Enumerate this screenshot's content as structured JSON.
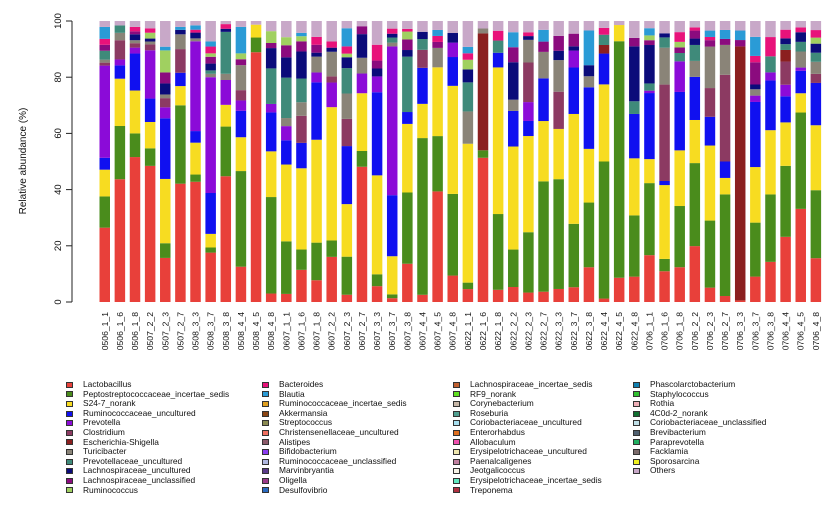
{
  "chart_data": {
    "type": "bar",
    "stacked": true,
    "title": "",
    "xlabel": "",
    "ylabel": "Relative abundance (%)",
    "ylim": [
      0,
      100
    ],
    "yticks": [
      0,
      20,
      40,
      60,
      80,
      100
    ],
    "grid": false,
    "legend_position": "bottom",
    "categories": [
      "0506_1_1",
      "0506_1_6",
      "0506_1_8",
      "0507_2_2",
      "0507_2_3",
      "0507_2_7",
      "0508_3_3",
      "0508_3_7",
      "0508_3_8",
      "0508_4_4",
      "0508_4_5",
      "0508_4_8",
      "0607_1_1",
      "0607_1_6",
      "0607_1_8",
      "0607_2_2",
      "0607_2_3",
      "0607_2_7",
      "0607_3_3",
      "0607_3_7",
      "0607_3_8",
      "0607_4_4",
      "0607_4_5",
      "0607_4_8",
      "0622_1_1",
      "0622_1_6",
      "0622_1_8",
      "0622_2_2",
      "0622_2_3",
      "0622_2_7",
      "0622_3_3",
      "0622_3_7",
      "0622_3_8",
      "0622_4_4",
      "0622_4_5",
      "0622_4_8",
      "0706_1_1",
      "0706_1_6",
      "0706_1_8",
      "0706_2_2",
      "0706_2_3",
      "0706_2_7",
      "0706_3_3",
      "0706_3_7",
      "0706_3_8",
      "0706_4_4",
      "0706_4_5",
      "0706_4_8"
    ],
    "series": [
      {
        "name": "Lactobacillus",
        "color": "#E8403A",
        "values": [
          25,
          41.5,
          49,
          46.5,
          12,
          40,
          41.5,
          14.5,
          40.5,
          12,
          68,
          2.5,
          2,
          9.5,
          5.5,
          11,
          2,
          51.5,
          2,
          1.5,
          14.5,
          2,
          37,
          5.5,
          2,
          58,
          2.5,
          4,
          2.5,
          3.5,
          3.5,
          3.5,
          11,
          1,
          6,
          6,
          19.5,
          7.5,
          12.5,
          17.5,
          4.5,
          2,
          0.5,
          8,
          12.5,
          22.5,
          29,
          14.5
        ]
      },
      {
        "name": "Peptostreptococcaceae_incertae_sedis",
        "color": "#4A8C1C",
        "values": [
          10.5,
          18,
          8,
          6,
          4,
          26.5,
          2.5,
          1.5,
          16,
          32.5,
          4,
          28.5,
          13,
          6,
          9.5,
          4,
          10.5,
          6,
          1.5,
          1.5,
          27,
          43.5,
          18.5,
          17,
          1,
          3,
          15.5,
          10,
          16,
          37.5,
          29.5,
          15,
          20.5,
          40,
          58.5,
          14.5,
          30,
          3,
          22,
          26,
          21,
          34,
          0,
          17,
          21,
          24.5,
          30,
          22.5
        ]
      },
      {
        "name": "S24-7_norank",
        "color": "#F7DC21",
        "values": [
          9,
          16,
          14.5,
          9,
          17.5,
          6.5,
          11,
          4,
          7,
          11.5,
          3.5,
          13.5,
          19,
          24,
          26,
          32.5,
          14.5,
          22,
          12.5,
          15,
          26,
          9.5,
          23,
          22.5,
          21.5,
          0,
          30,
          27.5,
          25.5,
          20.5,
          13.5,
          26,
          17,
          22.5,
          4,
          13.5,
          10,
          18,
          20,
          13.5,
          23.5,
          5.5,
          0,
          17.5,
          20,
          15,
          6,
          21.5
        ]
      },
      {
        "name": "Ruminococcaceae_uncultured",
        "color": "#1010F0",
        "values": [
          4,
          4.5,
          12.5,
          8,
          16.5,
          4.5,
          4,
          12,
          0,
          9,
          0,
          11.5,
          6,
          7.5,
          14.5,
          0,
          16,
          0,
          10.5,
          24,
          4.5,
          10,
          0,
          6,
          0,
          0,
          3,
          9.5,
          4,
          14.5,
          0,
          11,
          19.5,
          9,
          0,
          10.5,
          27.5,
          1,
          21,
          13.5,
          9,
          5.5,
          0,
          20.5,
          15.5,
          9,
          7,
          14
        ]
      },
      {
        "name": "Prevotella",
        "color": "#8B0BD8",
        "values": [
          31,
          2,
          2,
          16.5,
          3,
          0,
          31,
          34,
          8,
          3.5,
          0,
          2.5,
          3.5,
          0,
          2.5,
          6,
          0,
          7.5,
          2,
          58.5,
          0,
          0,
          0,
          3,
          0,
          0,
          0,
          0,
          5,
          0,
          0,
          4,
          0,
          0,
          0,
          0,
          1,
          0,
          11,
          0,
          0,
          0,
          0,
          2,
          2.5,
          4,
          1,
          0
        ]
      },
      {
        "name": "Clostridium",
        "color": "#8C3A62",
        "values": [
          1,
          6.5,
          1.5,
          2,
          2.5,
          8,
          0,
          0,
          0,
          3.5,
          0,
          0,
          0,
          8,
          0,
          1.5,
          7.5,
          0,
          0,
          0,
          0,
          5,
          0,
          0,
          0,
          0,
          0,
          0,
          10.5,
          0,
          10,
          0,
          0,
          0,
          0,
          0,
          0,
          23.5,
          0,
          0,
          9,
          29,
          0,
          0,
          0,
          8,
          0,
          3
        ]
      },
      {
        "name": "Escherichia-Shigella",
        "color": "#8B1F1F",
        "values": [
          0,
          0,
          0,
          0,
          0,
          0,
          0,
          0,
          0,
          0,
          0,
          0,
          0,
          0,
          0,
          0,
          0,
          0,
          0,
          0,
          0,
          0,
          0,
          0,
          0,
          47,
          0,
          0,
          0,
          0,
          0,
          0,
          0,
          2.5,
          0,
          0,
          0,
          0,
          0,
          0,
          0,
          0,
          80,
          0,
          0,
          4,
          0,
          0
        ]
      },
      {
        "name": "Turicibacter",
        "color": "#8A8478",
        "values": [
          1,
          2.5,
          1,
          1,
          1,
          5,
          1,
          1,
          2,
          8.5,
          0,
          0,
          2,
          4,
          4,
          6,
          7,
          6,
          0,
          1.5,
          0,
          0,
          6.5,
          0,
          5,
          2,
          0,
          3,
          6,
          9,
          8.5,
          0,
          3.5,
          0,
          0,
          0,
          0,
          9,
          0,
          5,
          13,
          10,
          0,
          2,
          0,
          0,
          5,
          4
        ]
      },
      {
        "name": "Prevotellaceae_uncultured",
        "color": "#3F8A7A",
        "values": [
          3,
          2.5,
          0,
          0,
          0,
          0,
          0,
          1,
          13.5,
          0,
          0,
          10.5,
          10,
          7,
          0,
          0,
          7,
          0,
          0,
          2,
          21,
          3,
          0,
          0,
          4.5,
          0,
          2.5,
          0,
          0,
          0,
          0,
          0,
          0,
          3,
          0,
          3,
          3,
          2.5,
          3,
          5,
          0,
          0,
          0,
          0,
          5,
          2,
          3,
          3
        ]
      },
      {
        "name": "Lachnospiraceae_uncultured",
        "color": "#0B0B7A",
        "values": [
          0,
          0,
          2,
          1,
          3,
          1.5,
          2,
          2,
          1,
          0,
          0,
          6,
          5,
          8,
          1,
          1,
          3,
          9,
          1,
          1.5,
          2.5,
          2,
          0,
          2,
          2,
          0,
          0,
          10,
          1,
          0,
          2.5,
          1,
          3.5,
          0,
          0,
          13,
          16,
          1,
          0,
          2,
          0,
          0,
          0,
          1.5,
          0,
          2,
          3,
          3
        ]
      },
      {
        "name": "Lachnospiraceae_unclassified",
        "color": "#8B0B7E",
        "values": [
          2,
          0,
          1,
          0,
          3,
          0,
          0,
          2,
          0,
          2,
          0,
          1.5,
          3,
          3,
          2,
          0,
          0,
          3,
          1,
          0,
          4,
          0,
          2,
          0,
          0,
          0,
          0,
          4,
          0,
          3.5,
          4,
          3,
          0,
          0,
          0,
          2,
          2,
          0,
          2,
          2.5,
          2,
          2,
          2,
          7,
          0,
          0,
          0,
          0
        ]
      },
      {
        "name": "Ruminococcus",
        "color": "#A0D060",
        "values": [
          0,
          0,
          0,
          2,
          6,
          0,
          0,
          1,
          0,
          2,
          0,
          3.5,
          2,
          1.5,
          0,
          0,
          1,
          0,
          0,
          0,
          3,
          0,
          0,
          0,
          1.5,
          0,
          0,
          0,
          0,
          0,
          0,
          0,
          0,
          0,
          0,
          0,
          2,
          0,
          2,
          0,
          0,
          0,
          0,
          0,
          0,
          0,
          0,
          2
        ]
      },
      {
        "name": "Bacteroides",
        "color": "#E8127A",
        "values": [
          2,
          0,
          1.5,
          1.5,
          0,
          0,
          1,
          2,
          1.5,
          0,
          0,
          0,
          0,
          0,
          2,
          1.5,
          2,
          0,
          2,
          2,
          1,
          0,
          2,
          0,
          1,
          0,
          2,
          0,
          1,
          0,
          0,
          0,
          0,
          2,
          0,
          0,
          0,
          0,
          3.5,
          1,
          1,
          0,
          0,
          2,
          6,
          3,
          1.5,
          2.5
        ]
      },
      {
        "name": "Blautia",
        "color": "#2A9BD6",
        "values": [
          4,
          0,
          0,
          0,
          1,
          1,
          1.5,
          1.5,
          0,
          9,
          0,
          0,
          0,
          1,
          0,
          0,
          5,
          0,
          0,
          0,
          0,
          0,
          2,
          0,
          1,
          0,
          0,
          4,
          0,
          4,
          0,
          0,
          11,
          0,
          0,
          0,
          3,
          0,
          0,
          0,
          2,
          3,
          3,
          6,
          0,
          0,
          0,
          0
        ]
      },
      {
        "name": "Others",
        "color": "#C8A8C8",
        "values": [
          2,
          1.5,
          2,
          2.5,
          7,
          2,
          1.5,
          6,
          1,
          2,
          1,
          3,
          4,
          3.5,
          4,
          5,
          2,
          2,
          3,
          3,
          3,
          3,
          3,
          2.5,
          4,
          3,
          2,
          3,
          3,
          3,
          4,
          3,
          3,
          2,
          1,
          4,
          3,
          3,
          4,
          2,
          3,
          3,
          3,
          5,
          5,
          3,
          2,
          3
        ]
      }
    ],
    "other_legend_entries": [
      {
        "name": "Ruminococcaceae_incertae_sedis",
        "color": "#E0A020"
      },
      {
        "name": "Akkermansia",
        "color": "#8B4513"
      },
      {
        "name": "Streptococcus",
        "color": "#8A8A50"
      },
      {
        "name": "Christensenellaceae_uncultured",
        "color": "#F07060"
      },
      {
        "name": "Alistipes",
        "color": "#8B5A6A"
      },
      {
        "name": "Bifidobacterium",
        "color": "#8A3CF0"
      },
      {
        "name": "Ruminococcaceae_unclassified",
        "color": "#B0B8E0"
      },
      {
        "name": "Marvinbryantia",
        "color": "#5A3A8A"
      },
      {
        "name": "Oligella",
        "color": "#9A3A8A"
      },
      {
        "name": "Desulfovibrio",
        "color": "#2A6AC0"
      },
      {
        "name": "Lachnospiraceae_incertae_sedis",
        "color": "#C06030"
      },
      {
        "name": "RF9_norank",
        "color": "#60E020"
      },
      {
        "name": "Corynebacterium",
        "color": "#C8B8A8"
      },
      {
        "name": "Roseburia",
        "color": "#50A090"
      },
      {
        "name": "Coriobacteriaceae_uncultured",
        "color": "#A8E0F0"
      },
      {
        "name": "Enterorhabdus",
        "color": "#E07020"
      },
      {
        "name": "Allobaculum",
        "color": "#F050B0"
      },
      {
        "name": "Erysipelotrichaceae_uncultured",
        "color": "#F0E8B0"
      },
      {
        "name": "Paenalcaligenes",
        "color": "#C080A0"
      },
      {
        "name": "Jeotgalicoccus",
        "color": "#F8F4E8"
      },
      {
        "name": "Erysipelotrichaceae_incertae_sedis",
        "color": "#60E8C0"
      },
      {
        "name": "Treponema",
        "color": "#B03040"
      },
      {
        "name": "Phascolarctobacterium",
        "color": "#1080B0"
      },
      {
        "name": "Staphylococcus",
        "color": "#30C030"
      },
      {
        "name": "Rothia",
        "color": "#F0B0B8"
      },
      {
        "name": "4C0d-2_norank",
        "color": "#107030"
      },
      {
        "name": "Coriobacteriaceae_unclassified",
        "color": "#C0E0E8"
      },
      {
        "name": "Brevibacterium",
        "color": "#506070"
      },
      {
        "name": "Paraprevotella",
        "color": "#20B060"
      },
      {
        "name": "Facklamia",
        "color": "#7A6A6A"
      },
      {
        "name": "Sporosarcina",
        "color": "#F0F020"
      }
    ]
  },
  "legend": {
    "columns": [
      [
        {
          "name": "Lactobacillus",
          "color": "#E8403A"
        },
        {
          "name": "Peptostreptococcaceae_incertae_sedis",
          "color": "#4A8C1C"
        },
        {
          "name": "S24-7_norank",
          "color": "#F7DC21"
        },
        {
          "name": "Ruminococcaceae_uncultured",
          "color": "#1010F0"
        },
        {
          "name": "Prevotella",
          "color": "#8B0BD8"
        },
        {
          "name": "Clostridium",
          "color": "#8C3A62"
        },
        {
          "name": "Escherichia-Shigella",
          "color": "#8B1F1F"
        },
        {
          "name": "Turicibacter",
          "color": "#8A8478"
        },
        {
          "name": "Prevotellaceae_uncultured",
          "color": "#3F8A7A"
        },
        {
          "name": "Lachnospiraceae_uncultured",
          "color": "#0B0B7A"
        },
        {
          "name": "Lachnospiraceae_unclassified",
          "color": "#8B0B7E"
        },
        {
          "name": "Ruminococcus",
          "color": "#A0D060"
        }
      ],
      [
        {
          "name": "Bacteroides",
          "color": "#E8127A"
        },
        {
          "name": "Blautia",
          "color": "#2A9BD6"
        },
        {
          "name": "Ruminococcaceae_incertae_sedis",
          "color": "#E0A020"
        },
        {
          "name": "Akkermansia",
          "color": "#8B4513"
        },
        {
          "name": "Streptococcus",
          "color": "#8A8A50"
        },
        {
          "name": "Christensenellaceae_uncultured",
          "color": "#F07060"
        },
        {
          "name": "Alistipes",
          "color": "#8B5A6A"
        },
        {
          "name": "Bifidobacterium",
          "color": "#8A3CF0"
        },
        {
          "name": "Ruminococcaceae_unclassified",
          "color": "#B0B8E0"
        },
        {
          "name": "Marvinbryantia",
          "color": "#5A3A8A"
        },
        {
          "name": "Oligella",
          "color": "#9A3A8A"
        },
        {
          "name": "Desulfovibrio",
          "color": "#2A6AC0"
        }
      ],
      [
        {
          "name": "Lachnospiraceae_incertae_sedis",
          "color": "#C06030"
        },
        {
          "name": "RF9_norank",
          "color": "#60E020"
        },
        {
          "name": "Corynebacterium",
          "color": "#C8B8A8"
        },
        {
          "name": "Roseburia",
          "color": "#50A090"
        },
        {
          "name": "Coriobacteriaceae_uncultured",
          "color": "#A8E0F0"
        },
        {
          "name": "Enterorhabdus",
          "color": "#E07020"
        },
        {
          "name": "Allobaculum",
          "color": "#F050B0"
        },
        {
          "name": "Erysipelotrichaceae_uncultured",
          "color": "#F0E8B0"
        },
        {
          "name": "Paenalcaligenes",
          "color": "#C080A0"
        },
        {
          "name": "Jeotgalicoccus",
          "color": "#F8F4E8"
        },
        {
          "name": "Erysipelotrichaceae_incertae_sedis",
          "color": "#60E8C0"
        },
        {
          "name": "Treponema",
          "color": "#B03040"
        }
      ],
      [
        {
          "name": "Phascolarctobacterium",
          "color": "#1080B0"
        },
        {
          "name": "Staphylococcus",
          "color": "#30C030"
        },
        {
          "name": "Rothia",
          "color": "#F0B0B8"
        },
        {
          "name": "4C0d-2_norank",
          "color": "#107030"
        },
        {
          "name": "Coriobacteriaceae_unclassified",
          "color": "#C0E0E8"
        },
        {
          "name": "Brevibacterium",
          "color": "#506070"
        },
        {
          "name": "Paraprevotella",
          "color": "#20B060"
        },
        {
          "name": "Facklamia",
          "color": "#7A6A6A"
        },
        {
          "name": "Sporosarcina",
          "color": "#F0F020"
        },
        {
          "name": "Others",
          "color": "#C8A8C8"
        }
      ]
    ]
  }
}
